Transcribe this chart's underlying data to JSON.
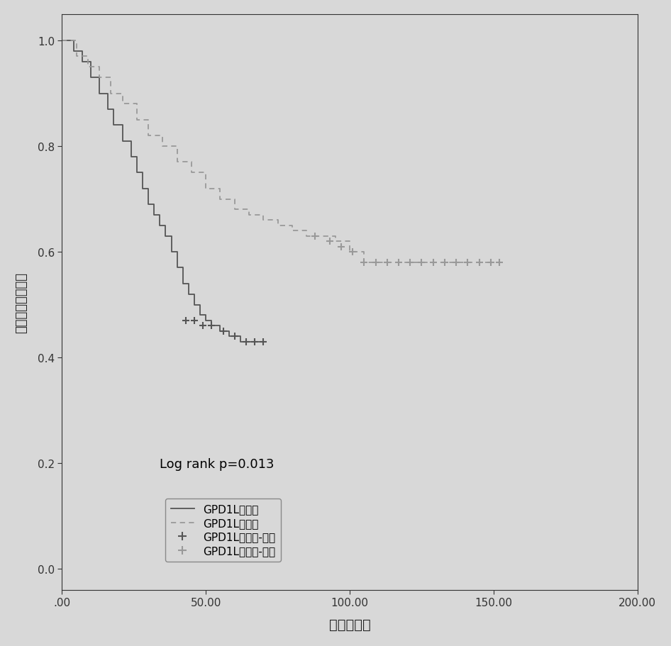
{
  "xlabel": "时间（月）",
  "ylabel": "疾病特异性生存率",
  "log_rank_text": "Log rank p=0.013",
  "legend_labels": [
    "GPD1L低表达",
    "GPD1L高表达",
    "GPD1L低表达-删失",
    "GPD1L高表达-删失"
  ],
  "xlim": [
    0,
    200
  ],
  "ylim": [
    -0.04,
    1.05
  ],
  "xticks": [
    0,
    50,
    100,
    150,
    200
  ],
  "xtick_labels": [
    ".00",
    "50.00",
    "100.00",
    "150.00",
    "200.00"
  ],
  "yticks": [
    0.0,
    0.2,
    0.4,
    0.6,
    0.8,
    1.0
  ],
  "color_low": "#555555",
  "color_high": "#999999",
  "bg_color": "#d8d8d8",
  "low_expr_times": [
    0,
    4,
    7,
    10,
    13,
    16,
    18,
    21,
    24,
    26,
    28,
    30,
    32,
    34,
    36,
    38,
    40,
    42,
    44,
    46,
    48,
    50,
    52,
    55,
    58,
    62,
    65,
    68,
    70
  ],
  "low_expr_surv": [
    1.0,
    0.98,
    0.96,
    0.93,
    0.9,
    0.87,
    0.84,
    0.81,
    0.78,
    0.75,
    0.72,
    0.69,
    0.67,
    0.65,
    0.63,
    0.6,
    0.57,
    0.54,
    0.52,
    0.5,
    0.48,
    0.47,
    0.46,
    0.45,
    0.44,
    0.43,
    0.43,
    0.43,
    0.43
  ],
  "high_expr_times": [
    0,
    5,
    9,
    13,
    17,
    21,
    26,
    30,
    35,
    40,
    45,
    50,
    55,
    60,
    65,
    70,
    75,
    80,
    85,
    90,
    95,
    100,
    105,
    110,
    115,
    120,
    125,
    130,
    135,
    140,
    145,
    150
  ],
  "high_expr_surv": [
    1.0,
    0.97,
    0.95,
    0.93,
    0.9,
    0.88,
    0.85,
    0.82,
    0.8,
    0.77,
    0.75,
    0.72,
    0.7,
    0.68,
    0.67,
    0.66,
    0.65,
    0.64,
    0.63,
    0.63,
    0.62,
    0.6,
    0.58,
    0.58,
    0.58,
    0.58,
    0.58,
    0.58,
    0.58,
    0.58,
    0.58,
    0.58
  ],
  "low_censored_times": [
    43,
    46,
    49,
    52,
    56,
    60,
    64,
    67,
    70
  ],
  "low_censored_surv": [
    0.47,
    0.47,
    0.46,
    0.46,
    0.45,
    0.44,
    0.43,
    0.43,
    0.43
  ],
  "high_censored_times": [
    88,
    93,
    97,
    101,
    105,
    109,
    113,
    117,
    121,
    125,
    129,
    133,
    137,
    141,
    145,
    149,
    152
  ],
  "high_censored_surv": [
    0.63,
    0.62,
    0.61,
    0.6,
    0.58,
    0.58,
    0.58,
    0.58,
    0.58,
    0.58,
    0.58,
    0.58,
    0.58,
    0.58,
    0.58,
    0.58,
    0.58
  ]
}
